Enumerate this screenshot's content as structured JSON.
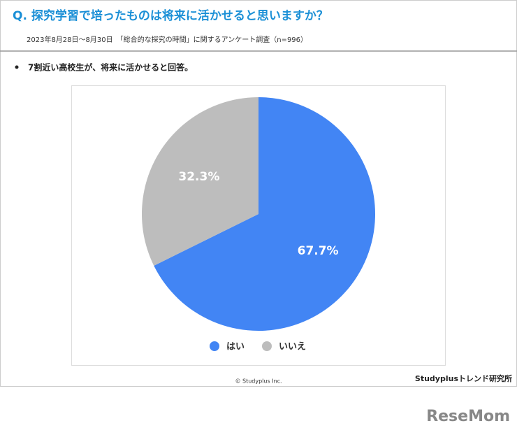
{
  "header": {
    "title": "Q. 探究学習で培ったものは将来に活かせると思いますか？",
    "subtitle": "2023年8月28日〜8月30日　「総合的な探究の時間」に関するアンケート調査（n=996）",
    "bullet": "7割近い高校生が、将来に活かせると回答。"
  },
  "chart_data": {
    "type": "pie",
    "categories": [
      "はい",
      "いいえ"
    ],
    "values": [
      67.7,
      32.3
    ],
    "value_labels": [
      "67.7%",
      "32.3%"
    ],
    "colors": [
      "#4285f4",
      "#bdbdbd"
    ]
  },
  "footer": {
    "copyright": "© Studyplus Inc.",
    "source": "Studyplusトレンド研究所"
  },
  "logo": "ReseMom"
}
